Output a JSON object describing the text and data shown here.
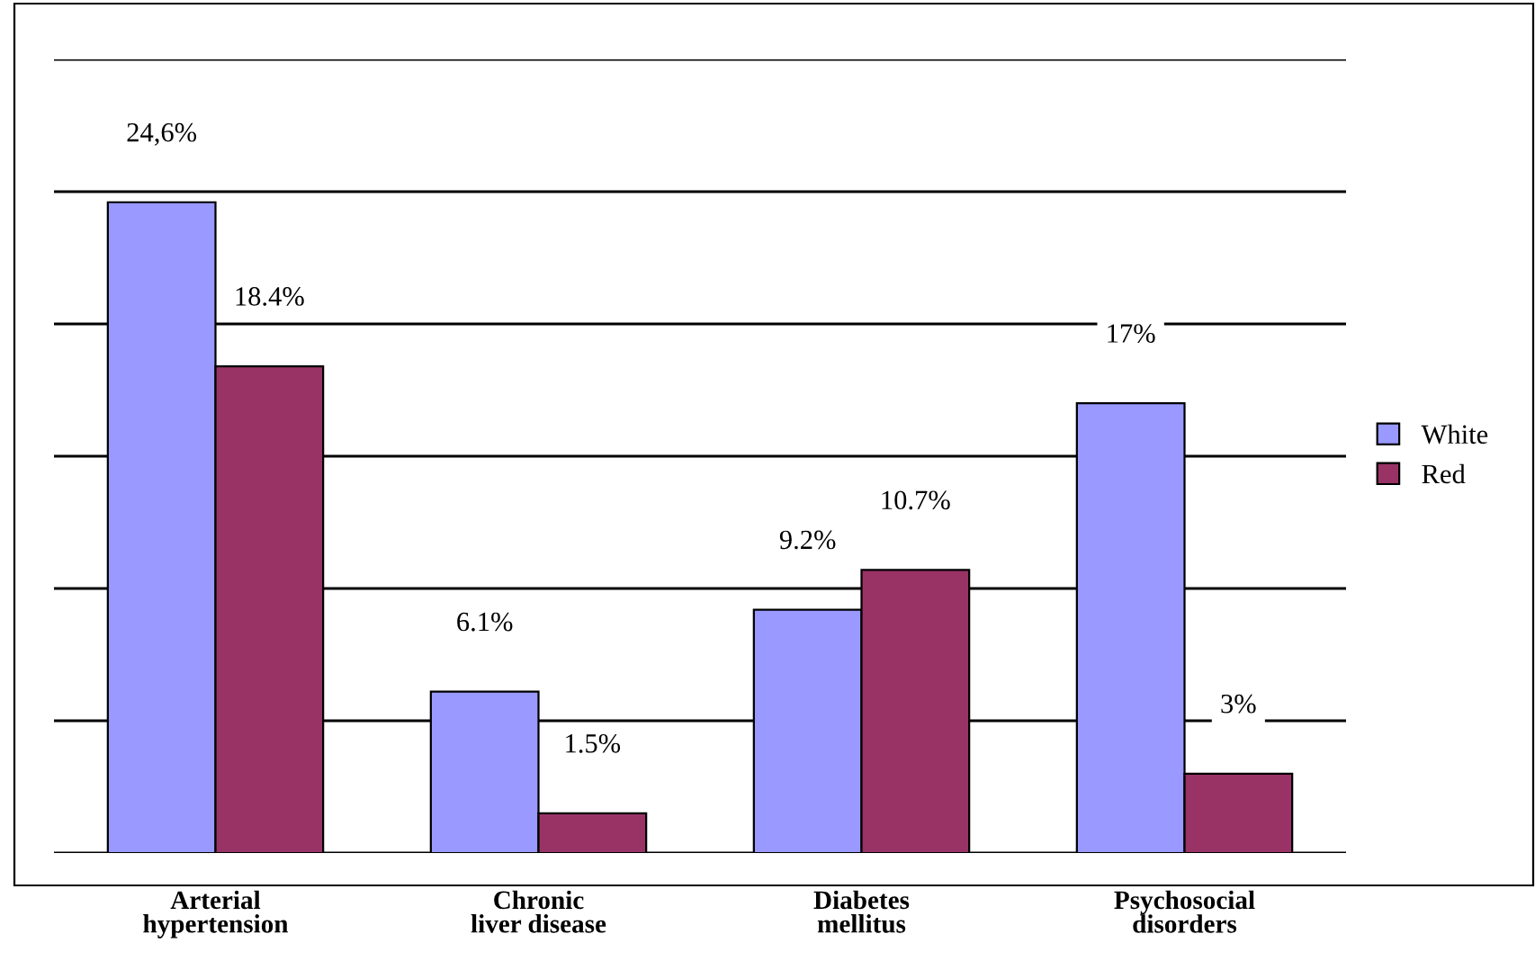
{
  "chart_data": {
    "type": "bar",
    "categories": [
      "Arterial hypertension",
      "Chronic liver disease",
      "Diabetes mellitus",
      "Psychosocial disorders"
    ],
    "series": [
      {
        "name": "White",
        "color": "#9999ff",
        "values": [
          24.6,
          6.1,
          9.2,
          17
        ],
        "value_labels": [
          "24,6%",
          "6.1%",
          "9.2%",
          "17%"
        ]
      },
      {
        "name": "Red",
        "color": "#993366",
        "values": [
          18.4,
          1.5,
          10.7,
          3
        ],
        "value_labels": [
          "18.4%",
          "1.5%",
          "10.7%",
          "3%"
        ]
      }
    ],
    "ylim": [
      0,
      30
    ],
    "yticks": [
      {
        "value": 0,
        "label": null
      },
      {
        "value": 5,
        "label": null
      },
      {
        "value": 10,
        "label": null
      },
      {
        "value": 15,
        "label": null
      },
      {
        "value": 20,
        "label": null
      },
      {
        "value": 25,
        "label": null
      },
      {
        "value": 30,
        "label": null
      }
    ],
    "grid": "y",
    "tick_labels": "x",
    "legend": "right"
  }
}
